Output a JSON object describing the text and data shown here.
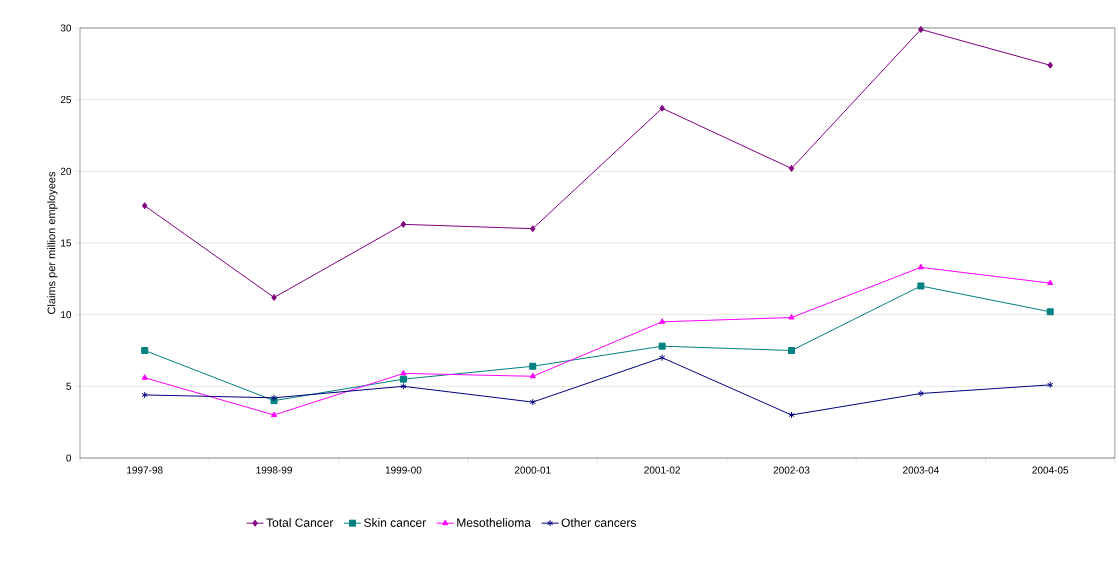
{
  "chart_data": {
    "type": "line",
    "ylabel": "Claims per million employees",
    "categories": [
      "1997-98",
      "1998-99",
      "1999-00",
      "2000-01",
      "2001-02",
      "2002-03",
      "2003-04",
      "2004-05"
    ],
    "series": [
      {
        "name": "Total Cancer",
        "color": "#800080",
        "marker": "diamond",
        "values": [
          17.6,
          11.2,
          16.3,
          16.0,
          24.4,
          20.2,
          29.9,
          27.4
        ]
      },
      {
        "name": "Skin cancer",
        "color": "#008080",
        "marker": "square",
        "values": [
          7.5,
          4.0,
          5.5,
          6.4,
          7.8,
          7.5,
          12.0,
          10.2
        ]
      },
      {
        "name": "Mesothelioma",
        "color": "#ff00ff",
        "marker": "triangle",
        "values": [
          5.6,
          3.0,
          5.9,
          5.7,
          9.5,
          9.8,
          13.3,
          12.2
        ]
      },
      {
        "name": "Other cancers",
        "color": "#000080",
        "marker": "cross",
        "values": [
          4.4,
          4.2,
          5.0,
          3.9,
          7.0,
          3.0,
          4.5,
          5.1
        ]
      }
    ],
    "ylim": [
      0,
      30
    ],
    "yticks": [
      0,
      5,
      10,
      15,
      20,
      25,
      30
    ],
    "grid": "y",
    "legend": "bottom",
    "line_style": "solid"
  }
}
